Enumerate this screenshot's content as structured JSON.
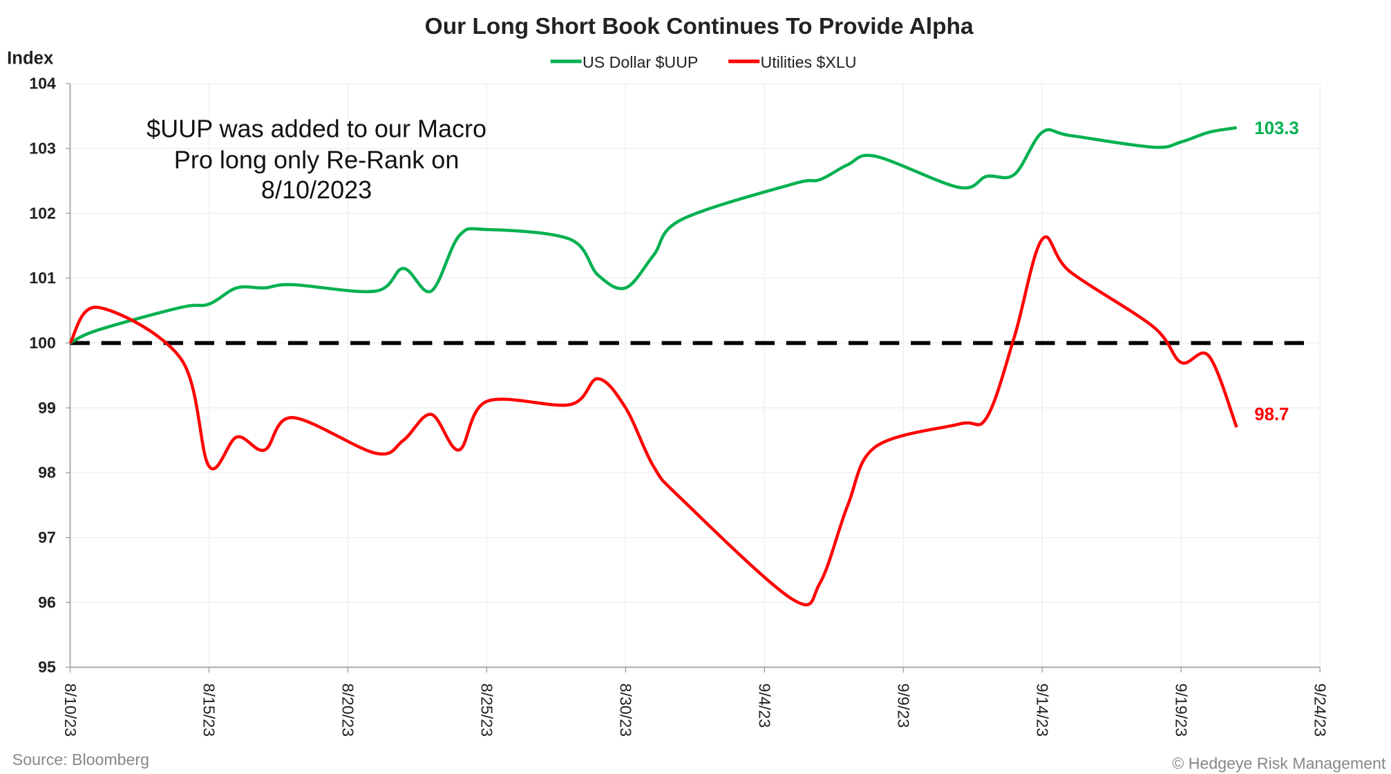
{
  "chart_data": {
    "type": "line",
    "title": "Our Long Short Book Continues To Provide Alpha",
    "ylabel": "Index",
    "xlabel": "",
    "ylim": [
      95,
      104
    ],
    "xlim": [
      "8/10/23",
      "9/24/23"
    ],
    "yticks": [
      "95",
      "96",
      "97",
      "98",
      "99",
      "100",
      "101",
      "102",
      "103",
      "104"
    ],
    "xticks": [
      "8/10/23",
      "8/15/23",
      "8/20/23",
      "8/25/23",
      "8/30/23",
      "9/4/23",
      "9/9/23",
      "9/14/23",
      "9/19/23",
      "9/24/23"
    ],
    "grid": true,
    "legend_position": "top-center",
    "reference_line": {
      "y": 100,
      "style": "dashed",
      "color": "#000000"
    },
    "annotation": [
      "$UUP was added to our Macro",
      "Pro long only Re-Rank on",
      "8/10/2023"
    ],
    "dates": [
      "8/10/23",
      "8/11/23",
      "8/14/23",
      "8/15/23",
      "8/16/23",
      "8/17/23",
      "8/18/23",
      "8/21/23",
      "8/22/23",
      "8/23/23",
      "8/24/23",
      "8/25/23",
      "8/28/23",
      "8/29/23",
      "8/30/23",
      "8/31/23",
      "9/1/23",
      "9/5/23",
      "9/6/23",
      "9/7/23",
      "9/8/23",
      "9/11/23",
      "9/12/23",
      "9/13/23",
      "9/14/23",
      "9/15/23",
      "9/18/23",
      "9/19/23",
      "9/20/23",
      "9/21/23"
    ],
    "series": [
      {
        "name": "US Dollar $UUP",
        "color": "#00b050",
        "end_label": "103.3",
        "values": [
          100.0,
          100.2,
          100.55,
          100.6,
          100.85,
          100.85,
          100.9,
          100.8,
          101.15,
          100.8,
          101.65,
          101.75,
          101.6,
          101.05,
          100.85,
          101.35,
          101.9,
          102.45,
          102.52,
          102.75,
          102.88,
          102.4,
          102.57,
          102.6,
          103.25,
          103.2,
          103.02,
          103.1,
          103.25,
          103.32
        ]
      },
      {
        "name": "Utilities $XLU",
        "color": "#ff0000",
        "end_label": "98.7",
        "values": [
          100.0,
          100.55,
          99.75,
          98.1,
          98.55,
          98.35,
          98.85,
          98.3,
          98.5,
          98.9,
          98.35,
          99.1,
          99.05,
          99.45,
          99.0,
          98.1,
          97.6,
          96.05,
          96.3,
          97.5,
          98.4,
          98.75,
          98.85,
          100.1,
          101.6,
          101.1,
          100.25,
          99.7,
          99.8,
          98.7
        ]
      }
    ]
  },
  "footer": {
    "source": "Source: Bloomberg",
    "copyright": "© Hedgeye Risk Management"
  }
}
